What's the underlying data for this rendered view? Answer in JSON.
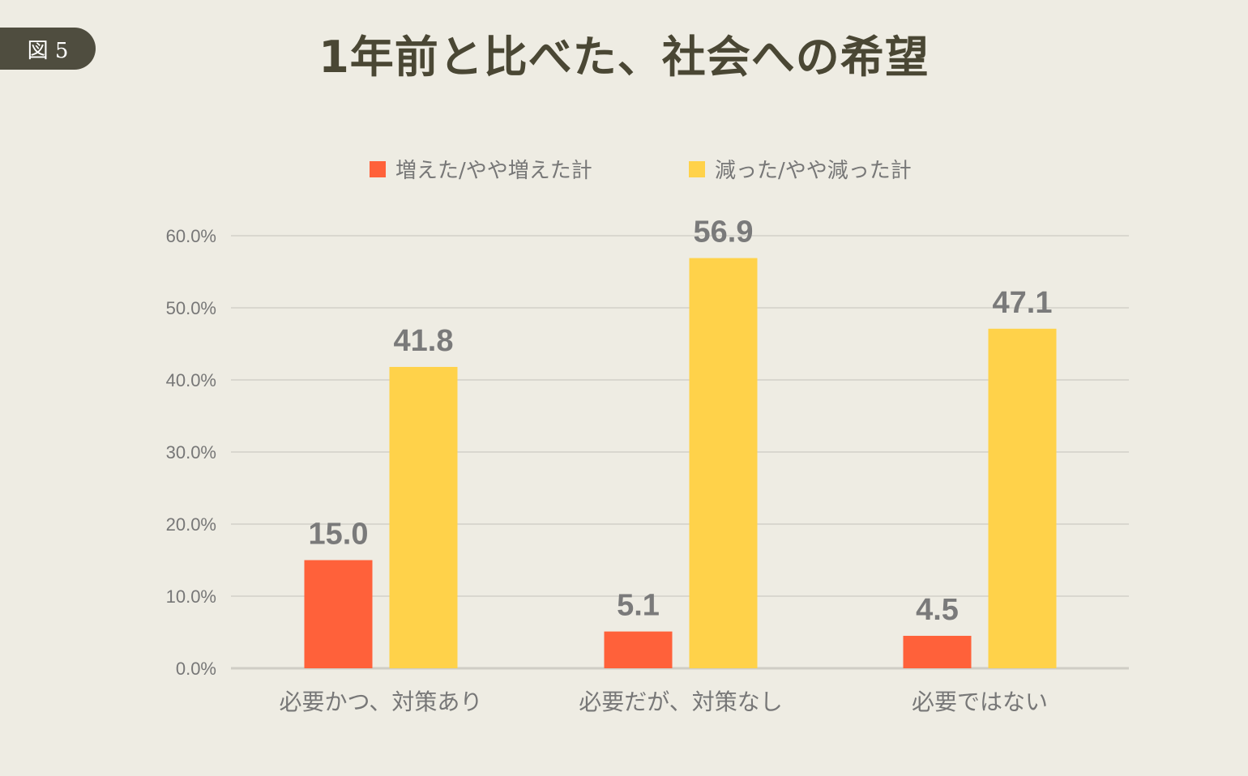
{
  "figure_label": "図 5",
  "title": "1年前と比べた、社会への希望",
  "colors": {
    "background": "#EEECE3",
    "increased": "#FF613A",
    "decreased": "#FFD24A",
    "grid": "#D9D7CF",
    "axis_text": "#777777",
    "value_label": "#7A7A7A"
  },
  "chart_data": {
    "type": "bar",
    "categories": [
      "必要かつ、対策あり",
      "必要だが、対策なし",
      "必要ではない"
    ],
    "series": [
      {
        "name": "増えた/やや増えた計",
        "values": [
          15.0,
          5.1,
          4.5
        ],
        "labels": [
          "15.0",
          "5.1",
          "4.5"
        ]
      },
      {
        "name": "減った/やや減った計",
        "values": [
          41.8,
          56.9,
          47.1
        ],
        "labels": [
          "41.8",
          "56.9",
          "47.1"
        ]
      }
    ],
    "ylim": [
      0,
      60
    ],
    "yticks": [
      "0.0%",
      "10.0%",
      "20.0%",
      "30.0%",
      "40.0%",
      "50.0%",
      "60.0%"
    ],
    "grid": true,
    "legend": "top-center"
  }
}
